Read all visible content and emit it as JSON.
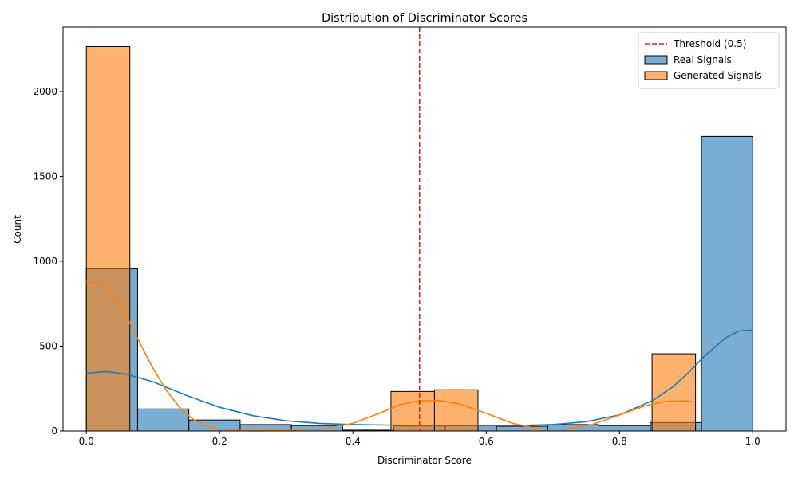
{
  "chart_data": {
    "type": "histogram",
    "title": "Distribution of Discriminator Scores",
    "xlabel": "Discriminator Score",
    "ylabel": "Count",
    "xlim": [
      -0.035,
      1.05
    ],
    "ylim": [
      0,
      2380
    ],
    "x_ticks": [
      "0.0",
      "0.2",
      "0.4",
      "0.6",
      "0.8",
      "1.0"
    ],
    "x_tick_values": [
      0.0,
      0.2,
      0.4,
      0.6,
      0.8,
      1.0
    ],
    "y_ticks": [
      "0",
      "500",
      "1000",
      "1500",
      "2000"
    ],
    "y_tick_values": [
      0,
      500,
      1000,
      1500,
      2000
    ],
    "threshold": {
      "value": 0.5,
      "label": "Threshold (0.5)",
      "color": "#d62728"
    },
    "series": [
      {
        "name": "Real Signals",
        "color": "#1f77b4",
        "bin_edges": [
          0.0,
          0.0769,
          0.1538,
          0.2308,
          0.3077,
          0.3846,
          0.4615,
          0.5385,
          0.6154,
          0.6923,
          0.7692,
          0.8462,
          0.9231,
          1.0
        ],
        "counts": [
          955,
          130,
          65,
          38,
          32,
          5,
          30,
          32,
          28,
          38,
          32,
          50,
          1735
        ],
        "kde": [
          [
            0.0,
            340
          ],
          [
            0.03,
            350
          ],
          [
            0.06,
            335
          ],
          [
            0.1,
            290
          ],
          [
            0.15,
            210
          ],
          [
            0.2,
            140
          ],
          [
            0.25,
            90
          ],
          [
            0.3,
            60
          ],
          [
            0.35,
            45
          ],
          [
            0.4,
            38
          ],
          [
            0.45,
            35
          ],
          [
            0.5,
            33
          ],
          [
            0.55,
            32
          ],
          [
            0.6,
            32
          ],
          [
            0.65,
            33
          ],
          [
            0.7,
            38
          ],
          [
            0.75,
            55
          ],
          [
            0.8,
            95
          ],
          [
            0.85,
            180
          ],
          [
            0.88,
            260
          ],
          [
            0.9,
            330
          ],
          [
            0.93,
            450
          ],
          [
            0.96,
            550
          ],
          [
            0.98,
            590
          ],
          [
            1.0,
            595
          ]
        ]
      },
      {
        "name": "Generated Signals",
        "color": "#ff7f0e",
        "bin_edges": [
          0.0,
          0.0653,
          0.1306,
          0.1959,
          0.2612,
          0.3265,
          0.3918,
          0.4571,
          0.5224,
          0.5877,
          0.653,
          0.7183,
          0.7836,
          0.8489,
          0.9142
        ],
        "counts": [
          2265,
          0,
          0,
          0,
          0,
          0,
          0,
          233,
          243,
          0,
          0,
          0,
          0,
          455
        ],
        "kde": [
          [
            0.0,
            880
          ],
          [
            0.02,
            870
          ],
          [
            0.04,
            800
          ],
          [
            0.06,
            680
          ],
          [
            0.08,
            520
          ],
          [
            0.1,
            370
          ],
          [
            0.12,
            240
          ],
          [
            0.14,
            140
          ],
          [
            0.16,
            70
          ],
          [
            0.18,
            30
          ],
          [
            0.2,
            10
          ],
          [
            0.22,
            3
          ],
          [
            0.25,
            1
          ],
          [
            0.3,
            2
          ],
          [
            0.35,
            10
          ],
          [
            0.4,
            45
          ],
          [
            0.44,
            105
          ],
          [
            0.47,
            155
          ],
          [
            0.5,
            178
          ],
          [
            0.53,
            180
          ],
          [
            0.56,
            160
          ],
          [
            0.6,
            105
          ],
          [
            0.64,
            45
          ],
          [
            0.68,
            12
          ],
          [
            0.72,
            10
          ],
          [
            0.76,
            40
          ],
          [
            0.8,
            95
          ],
          [
            0.84,
            150
          ],
          [
            0.87,
            175
          ],
          [
            0.9,
            178
          ],
          [
            0.91,
            170
          ]
        ]
      }
    ],
    "legend": {
      "placement": "top-right",
      "entries": [
        {
          "label": "Threshold (0.5)",
          "kind": "dashed-line",
          "color": "#d62728"
        },
        {
          "label": "Real Signals",
          "kind": "patch",
          "color": "#1f77b4"
        },
        {
          "label": "Generated Signals",
          "kind": "patch",
          "color": "#ff7f0e"
        }
      ]
    }
  }
}
